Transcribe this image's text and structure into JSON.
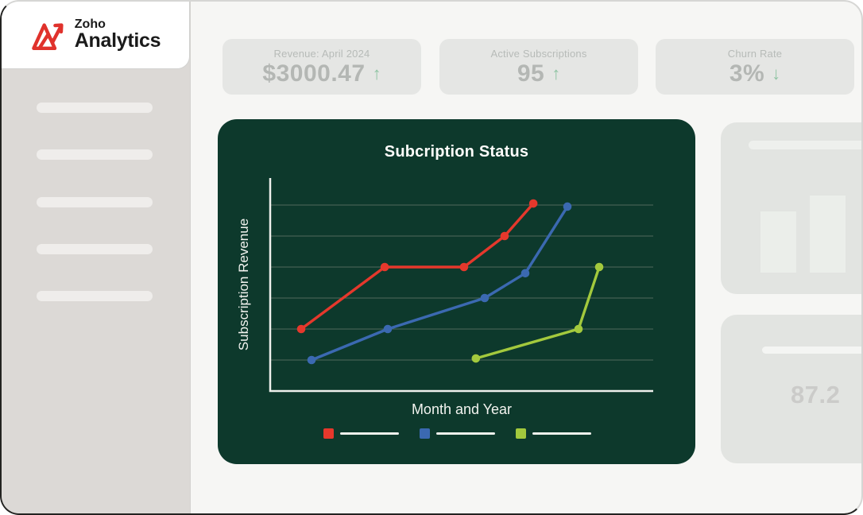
{
  "logo": {
    "brand_top": "Zoho",
    "brand_bottom": "Analytics"
  },
  "sidebar": {
    "placeholder_count": 5
  },
  "stats": [
    {
      "label": "Revenue: April 2024",
      "value": "$3000.47",
      "arrow": "↑",
      "trend": "up"
    },
    {
      "label": "Active Subscriptions",
      "value": "95",
      "arrow": "↑",
      "trend": "up"
    },
    {
      "label": "Churn Rate",
      "value": "3%",
      "arrow": "↓",
      "trend": "down"
    }
  ],
  "chart_data": {
    "type": "line",
    "title": "Subcription Status",
    "xlabel": "Month and Year",
    "ylabel": "Subscription Revenue",
    "xlim": [
      0,
      10
    ],
    "ylim": [
      0,
      7.6
    ],
    "grid": "horizontal",
    "gridline_values": [
      1,
      2,
      3,
      4,
      5,
      6
    ],
    "axis_tick_labels_visible": false,
    "legend_position": "bottom",
    "legend_labels_are_placeholder_lines": true,
    "series": [
      {
        "name": "series-red",
        "color": "#e5382c",
        "points": [
          {
            "x": 0.81,
            "y": 2.0
          },
          {
            "x": 2.99,
            "y": 4.0
          },
          {
            "x": 5.06,
            "y": 4.0
          },
          {
            "x": 6.12,
            "y": 5.0
          },
          {
            "x": 6.87,
            "y": 6.05
          }
        ]
      },
      {
        "name": "series-blue",
        "color": "#3b69b1",
        "points": [
          {
            "x": 1.08,
            "y": 1.0
          },
          {
            "x": 3.07,
            "y": 2.0
          },
          {
            "x": 5.6,
            "y": 3.0
          },
          {
            "x": 6.66,
            "y": 3.8
          },
          {
            "x": 7.76,
            "y": 5.95
          }
        ]
      },
      {
        "name": "series-green",
        "color": "#a3c93d",
        "points": [
          {
            "x": 5.37,
            "y": 1.05
          },
          {
            "x": 8.05,
            "y": 2.0
          },
          {
            "x": 8.59,
            "y": 4.0
          }
        ]
      }
    ]
  },
  "right_panel": {
    "kpi_value": "87.2"
  },
  "colors": {
    "brand_red": "#e0322c",
    "chart_background": "#0d392c",
    "chart_axis": "#eef0ec",
    "chart_gridline": "#51695c",
    "trend_arrow_green": "#8fc4a3",
    "sidebar_background": "#dcd9d6",
    "card_background": "#e5e6e4",
    "page_background": "#f6f6f4"
  }
}
